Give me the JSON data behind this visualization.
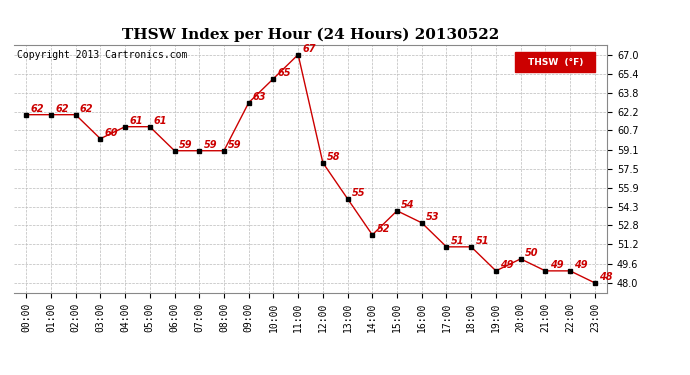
{
  "title": "THSW Index per Hour (24 Hours) 20130522",
  "copyright": "Copyright 2013 Cartronics.com",
  "legend_label": "THSW  (°F)",
  "hours": [
    0,
    1,
    2,
    3,
    4,
    5,
    6,
    7,
    8,
    9,
    10,
    11,
    12,
    13,
    14,
    15,
    16,
    17,
    18,
    19,
    20,
    21,
    22,
    23
  ],
  "x_labels": [
    "00:00",
    "01:00",
    "02:00",
    "03:00",
    "04:00",
    "05:00",
    "06:00",
    "07:00",
    "08:00",
    "09:00",
    "10:00",
    "11:00",
    "12:00",
    "13:00",
    "14:00",
    "15:00",
    "16:00",
    "17:00",
    "18:00",
    "19:00",
    "20:00",
    "21:00",
    "22:00",
    "23:00"
  ],
  "values": [
    62,
    62,
    62,
    60,
    61,
    61,
    59,
    59,
    59,
    63,
    65,
    67,
    58,
    55,
    52,
    54,
    53,
    51,
    51,
    49,
    50,
    49,
    49,
    48
  ],
  "y_ticks": [
    48.0,
    49.6,
    51.2,
    52.8,
    54.3,
    55.9,
    57.5,
    59.1,
    60.7,
    62.2,
    63.8,
    65.4,
    67.0
  ],
  "ylim": [
    47.2,
    67.8
  ],
  "line_color": "#cc0000",
  "marker_color": "#000000",
  "background_color": "#ffffff",
  "grid_color": "#bbbbbb",
  "title_fontsize": 11,
  "tick_fontsize": 7,
  "annotation_fontsize": 7,
  "copyright_fontsize": 7
}
